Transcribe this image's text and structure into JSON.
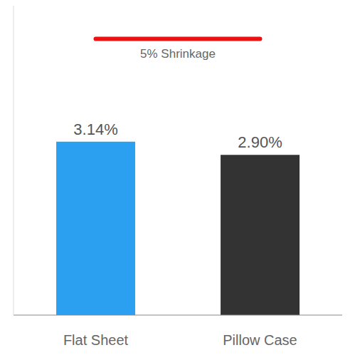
{
  "chart_data": {
    "type": "bar",
    "categories": [
      "Flat Sheet",
      "Pillow Case"
    ],
    "values": [
      3.14,
      2.9
    ],
    "value_labels": [
      "3.14%",
      "2.90%"
    ],
    "data_labels": true,
    "colors": [
      "#2ca0f0",
      "#333333"
    ],
    "ylim": [
      0,
      5.6
    ],
    "yticks": [],
    "tick_labels": "x",
    "grid": false,
    "reference_lines": [
      {
        "value": 5,
        "label": "5% Shrinkage",
        "color": "#ee1111"
      }
    ]
  }
}
